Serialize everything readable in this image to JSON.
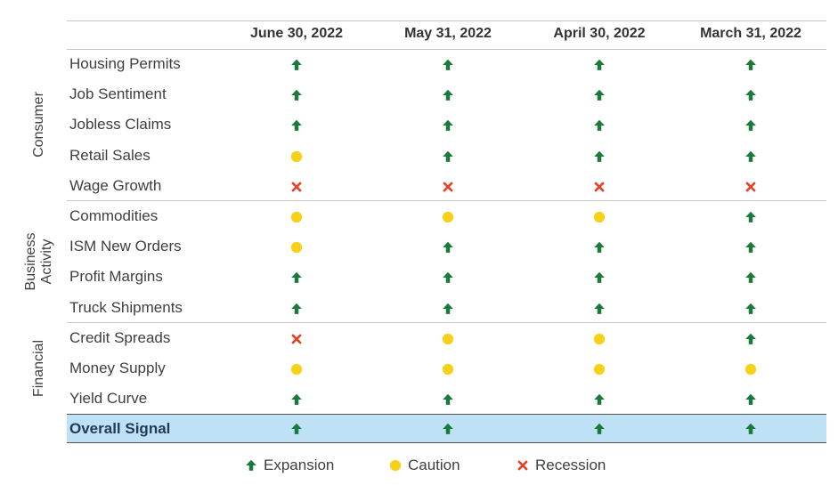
{
  "colors": {
    "expansion": "#1a7a3a",
    "caution": "#f7d117",
    "recession": "#e0452b",
    "overall_band": "#bfe1f5"
  },
  "chart_data": {
    "type": "table",
    "columns": [
      "June 30, 2022",
      "May 31, 2022",
      "April 30, 2022",
      "March 31, 2022"
    ],
    "groups": [
      {
        "name": "Consumer",
        "rows": [
          {
            "label": "Housing Permits",
            "signals": [
              "expansion",
              "expansion",
              "expansion",
              "expansion"
            ]
          },
          {
            "label": "Job Sentiment",
            "signals": [
              "expansion",
              "expansion",
              "expansion",
              "expansion"
            ]
          },
          {
            "label": "Jobless Claims",
            "signals": [
              "expansion",
              "expansion",
              "expansion",
              "expansion"
            ]
          },
          {
            "label": "Retail Sales",
            "signals": [
              "caution",
              "expansion",
              "expansion",
              "expansion"
            ]
          },
          {
            "label": "Wage Growth",
            "signals": [
              "recession",
              "recession",
              "recession",
              "recession"
            ]
          }
        ]
      },
      {
        "name": "Business Activity",
        "rows": [
          {
            "label": "Commodities",
            "signals": [
              "caution",
              "caution",
              "caution",
              "expansion"
            ]
          },
          {
            "label": "ISM New Orders",
            "signals": [
              "caution",
              "expansion",
              "expansion",
              "expansion"
            ]
          },
          {
            "label": "Profit Margins",
            "signals": [
              "expansion",
              "expansion",
              "expansion",
              "expansion"
            ]
          },
          {
            "label": "Truck Shipments",
            "signals": [
              "expansion",
              "expansion",
              "expansion",
              "expansion"
            ]
          }
        ]
      },
      {
        "name": "Financial",
        "rows": [
          {
            "label": "Credit Spreads",
            "signals": [
              "recession",
              "caution",
              "caution",
              "expansion"
            ]
          },
          {
            "label": "Money Supply",
            "signals": [
              "caution",
              "caution",
              "caution",
              "caution"
            ]
          },
          {
            "label": "Yield Curve",
            "signals": [
              "expansion",
              "expansion",
              "expansion",
              "expansion"
            ]
          }
        ]
      }
    ],
    "overall": {
      "label": "Overall Signal",
      "signals": [
        "expansion",
        "expansion",
        "expansion",
        "expansion"
      ]
    },
    "legend": [
      {
        "key": "expansion",
        "label": "Expansion"
      },
      {
        "key": "caution",
        "label": "Caution"
      },
      {
        "key": "recession",
        "label": "Recession"
      }
    ]
  }
}
